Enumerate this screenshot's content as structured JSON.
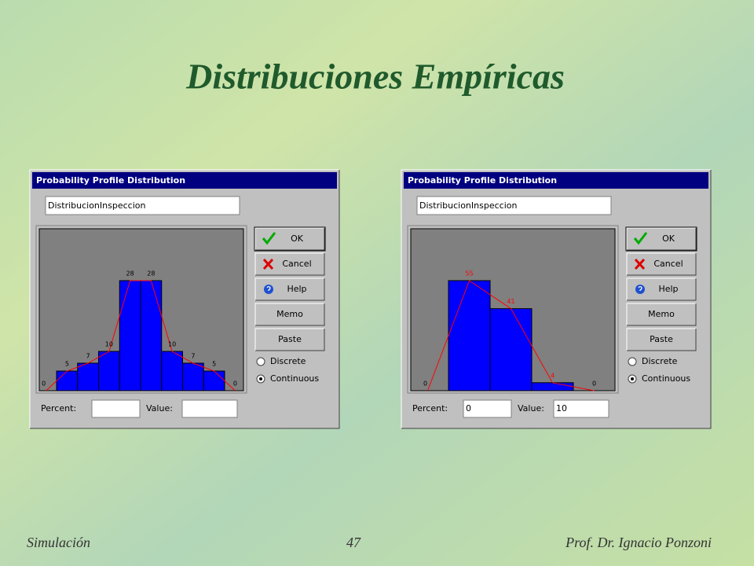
{
  "slide_title": "Distribuciones Empíricas",
  "dialogs": [
    {
      "title": "Probability Profile Distribution",
      "name": "DistribucionInspeccion",
      "buttons": [
        "OK",
        "Cancel",
        "Help",
        "Memo",
        "Paste"
      ],
      "options": [
        "Discrete",
        "Continuous"
      ],
      "selected": 1,
      "percent_label": "Percent:",
      "value_label": "Value:",
      "histogram": {
        "values": [
          0,
          5,
          7,
          10,
          28,
          28,
          10,
          7,
          5,
          0
        ],
        "bar_color": "#0000ff",
        "line_color": "#ff0000",
        "label_color": "#000000"
      }
    },
    {
      "title": "Probability Profile Distribution",
      "name": "DistribucionInspeccion",
      "buttons": [
        "OK",
        "Cancel",
        "Help",
        "Memo",
        "Paste"
      ],
      "options": [
        "Discrete",
        "Continuous"
      ],
      "selected": 1,
      "percent_label": "Percent:",
      "value_label": "Value:",
      "percent": 0,
      "value": 10,
      "histogram": {
        "values": [
          0,
          55,
          41,
          4,
          0
        ],
        "bar_color": "#0000ff",
        "line_color": "#ff0000",
        "label_color": "#ff0000"
      }
    }
  ],
  "footer": {
    "left": "Simulación",
    "center": "47",
    "right": "Prof. Dr. Ignacio Ponzoni"
  }
}
